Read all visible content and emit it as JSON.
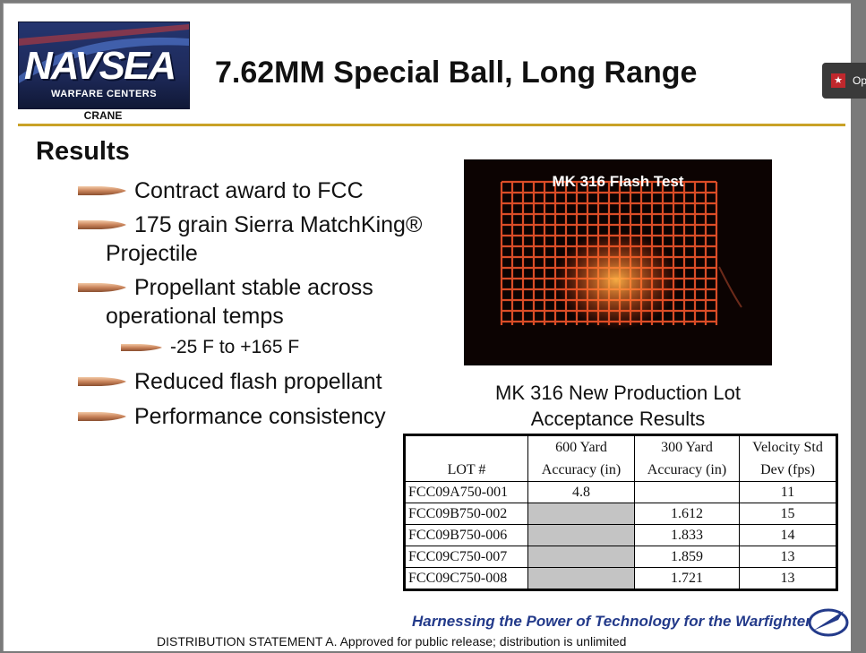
{
  "logo": {
    "main": "NAVSEA",
    "sub": "WARFARE CENTERS",
    "location": "CRANE"
  },
  "title": "7.62MM Special Ball, Long Range",
  "viewer_button": {
    "label": "Op",
    "icon": "pdf-icon"
  },
  "section_heading": "Results",
  "bullets": [
    {
      "line1": "Contract award to FCC",
      "line2": ""
    },
    {
      "line1": "175 grain Sierra MatchKing®",
      "line2": "Projectile"
    },
    {
      "line1": "Propellant stable across",
      "line2": "operational temps"
    },
    {
      "line1": "-25  F to +165  F",
      "line2": ""
    },
    {
      "line1": "Reduced flash propellant",
      "line2": ""
    },
    {
      "line1": "Performance consistency",
      "line2": ""
    }
  ],
  "photo": {
    "label": "MK 316 Flash Test",
    "colors": {
      "grid": "#ff5a2e",
      "flash": "#ffb347"
    }
  },
  "table_caption": {
    "line1": "MK 316 New Production Lot",
    "line2": "Acceptance Results"
  },
  "table": {
    "headers": [
      {
        "line1": "",
        "line2": "LOT #"
      },
      {
        "line1": "600 Yard",
        "line2": "Accuracy (in)"
      },
      {
        "line1": "300 Yard",
        "line2": "Accuracy (in)"
      },
      {
        "line1": "Velocity Std",
        "line2": "Dev (fps)"
      }
    ],
    "rows": [
      {
        "lot": "FCC09A750-001",
        "y600": "4.8",
        "y300": "",
        "vsd": "11",
        "y600_gray": false
      },
      {
        "lot": "FCC09B750-002",
        "y600": "",
        "y300": "1.612",
        "vsd": "15",
        "y600_gray": true
      },
      {
        "lot": "FCC09B750-006",
        "y600": "",
        "y300": "1.833",
        "vsd": "14",
        "y600_gray": true
      },
      {
        "lot": "FCC09C750-007",
        "y600": "",
        "y300": "1.859",
        "vsd": "13",
        "y600_gray": true
      },
      {
        "lot": "FCC09C750-008",
        "y600": "",
        "y300": "1.721",
        "vsd": "13",
        "y600_gray": true
      }
    ]
  },
  "footer": {
    "tagline": "Harnessing the Power of Technology for the Warfighter",
    "distribution": "DISTRIBUTION STATEMENT A. Approved for public release; distribution is unlimited"
  },
  "colors": {
    "accent_rule": "#c9a227",
    "tagline": "#233a8a",
    "navy": "#24356f",
    "gray_cell": "#c4c4c4"
  }
}
